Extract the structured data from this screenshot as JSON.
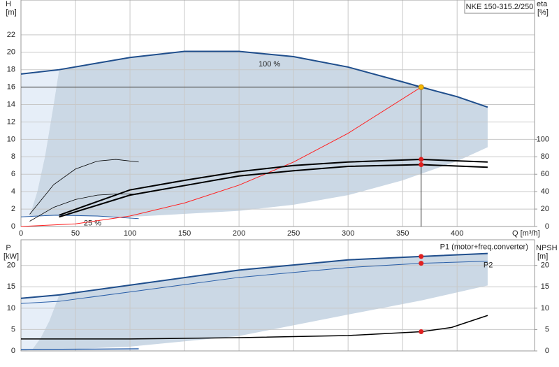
{
  "chart_data": [
    {
      "type": "line",
      "title": "NKE 150-315.2/250",
      "y_label": "H",
      "y_unit": "[m]",
      "y2_label": "eta",
      "y2_unit": "[%]",
      "x_label": "Q [m³/h]",
      "xlim": [
        0,
        471
      ],
      "xticks": [
        0,
        50,
        100,
        150,
        200,
        250,
        300,
        350,
        400
      ],
      "ylim": [
        0,
        26
      ],
      "yticks": [
        0,
        2,
        4,
        6,
        8,
        10,
        12,
        14,
        16,
        18,
        20,
        22
      ],
      "y2lim": [
        0,
        260
      ],
      "y2ticks": [
        0,
        20,
        40,
        60,
        80,
        100
      ],
      "grid": true,
      "areas": [
        {
          "color": "#e6eef8",
          "x": [
            0,
            0,
            35,
            30,
            22,
            15,
            8
          ],
          "values": [
            1.1,
            17.5,
            18,
            14,
            8,
            4,
            1.2
          ]
        },
        {
          "color": "#cbd8e5",
          "x": [
            8,
            15,
            22,
            30,
            35,
            100,
            150,
            200,
            250,
            300,
            350,
            400,
            428,
            428,
            400,
            350,
            300,
            250,
            200,
            100,
            35
          ],
          "values": [
            1.2,
            4,
            8,
            14,
            18,
            19.4,
            20.1,
            20.1,
            19.5,
            18.3,
            16.6,
            14.9,
            13.7,
            9.1,
            7.5,
            5.3,
            3.6,
            2.5,
            1.8,
            1.1,
            1.2
          ]
        }
      ],
      "series": [
        {
          "name": "100 %",
          "color": "#1f4e8c",
          "width": 2,
          "x": [
            0,
            35,
            100,
            150,
            200,
            250,
            300,
            350,
            367,
            400,
            428
          ],
          "values": [
            17.5,
            18,
            19.4,
            20.1,
            20.1,
            19.5,
            18.3,
            16.6,
            16,
            14.9,
            13.7
          ]
        },
        {
          "name": "25 %",
          "color": "#2a5fa8",
          "width": 1,
          "x": [
            0,
            32,
            70,
            108
          ],
          "values": [
            1.1,
            1.3,
            1.2,
            0.9
          ]
        },
        {
          "color": "#ff2020",
          "width": 1,
          "x": [
            0,
            50,
            100,
            150,
            200,
            250,
            300,
            367
          ],
          "values": [
            0,
            0.3,
            1.2,
            2.7,
            4.75,
            7.4,
            10.7,
            16
          ]
        },
        {
          "color": "#000000",
          "width": 2,
          "axis": "y2",
          "x": [
            35,
            100,
            150,
            200,
            250,
            300,
            367,
            428
          ],
          "values": [
            13,
            42,
            53,
            63,
            70,
            74,
            77,
            74
          ]
        },
        {
          "color": "#000000",
          "width": 2,
          "axis": "y2",
          "x": [
            35,
            100,
            150,
            200,
            250,
            300,
            367,
            428
          ],
          "values": [
            11,
            36,
            47,
            58,
            64,
            69,
            71,
            68
          ]
        },
        {
          "color": "#000000",
          "width": 0.8,
          "axis": "y2",
          "x": [
            8,
            30,
            50,
            70,
            87,
            108
          ],
          "values": [
            14,
            48,
            66,
            75,
            77,
            74
          ]
        },
        {
          "color": "#000000",
          "width": 0.8,
          "axis": "y2",
          "x": [
            8,
            30,
            50,
            70,
            90,
            108
          ],
          "values": [
            6,
            22,
            31,
            36,
            37.5,
            37
          ]
        }
      ],
      "markers": [
        {
          "color": "#f5b800",
          "x": 367,
          "y": 16
        },
        {
          "color": "#e02020",
          "axis": "y2",
          "x": 367,
          "y": 77
        },
        {
          "color": "#e02020",
          "axis": "y2",
          "x": 367,
          "y": 71
        }
      ]
    },
    {
      "type": "line",
      "y_label": "P",
      "y_unit": "[kW]",
      "y2_label": "NPSH",
      "y2_unit": "[m]",
      "xlim": [
        0,
        471
      ],
      "xticks": [
        0,
        50,
        100,
        150,
        200,
        250,
        300,
        350,
        400
      ],
      "ylim": [
        0,
        26
      ],
      "yticks": [
        0,
        5,
        10,
        15,
        20
      ],
      "y2lim": [
        0,
        26
      ],
      "y2ticks": [
        0,
        5,
        10,
        15,
        20
      ],
      "grid": true,
      "areas": [
        {
          "color": "#e6eef8",
          "x": [
            0,
            0,
            35,
            32,
            26,
            18,
            10
          ],
          "values": [
            0,
            12.3,
            13.1,
            11,
            7,
            3,
            0.2
          ]
        },
        {
          "color": "#cbd8e5",
          "x": [
            10,
            18,
            26,
            32,
            35,
            100,
            200,
            300,
            367,
            428,
            428,
            367,
            300,
            200,
            100,
            35
          ],
          "values": [
            0.2,
            3,
            7,
            11,
            13.1,
            15.4,
            18.9,
            21.3,
            22.1,
            22.8,
            15.3,
            11.8,
            8.5,
            3.5,
            1,
            0.3
          ]
        }
      ],
      "series": [
        {
          "name": "P1 (motor+freq.converter)",
          "color": "#1f4e8c",
          "width": 2,
          "x": [
            0,
            35,
            100,
            200,
            300,
            367,
            428
          ],
          "values": [
            12.3,
            13.1,
            15.4,
            18.9,
            21.3,
            22.1,
            22.8
          ]
        },
        {
          "name": "P2",
          "color": "#2a5fa8",
          "width": 1,
          "x": [
            0,
            35,
            100,
            200,
            300,
            367,
            428
          ],
          "values": [
            11.1,
            11.6,
            13.8,
            17.2,
            19.5,
            20.5,
            21
          ]
        },
        {
          "color": "#000000",
          "width": 1.5,
          "axis": "y2",
          "x": [
            0,
            35,
            100,
            200,
            300,
            367,
            395,
            428
          ],
          "values": [
            2.8,
            2.8,
            2.8,
            3.1,
            3.6,
            4.5,
            5.5,
            8.3
          ]
        },
        {
          "color": "#2a5fa8",
          "width": 1.5,
          "x": [
            0,
            108
          ],
          "values": [
            0.3,
            0.5
          ]
        }
      ],
      "markers": [
        {
          "color": "#e02020",
          "x": 367,
          "y": 22.1
        },
        {
          "color": "#e02020",
          "x": 367,
          "y": 20.5
        },
        {
          "color": "#e02020",
          "axis": "y2",
          "x": 367,
          "y": 4.5
        }
      ]
    }
  ]
}
